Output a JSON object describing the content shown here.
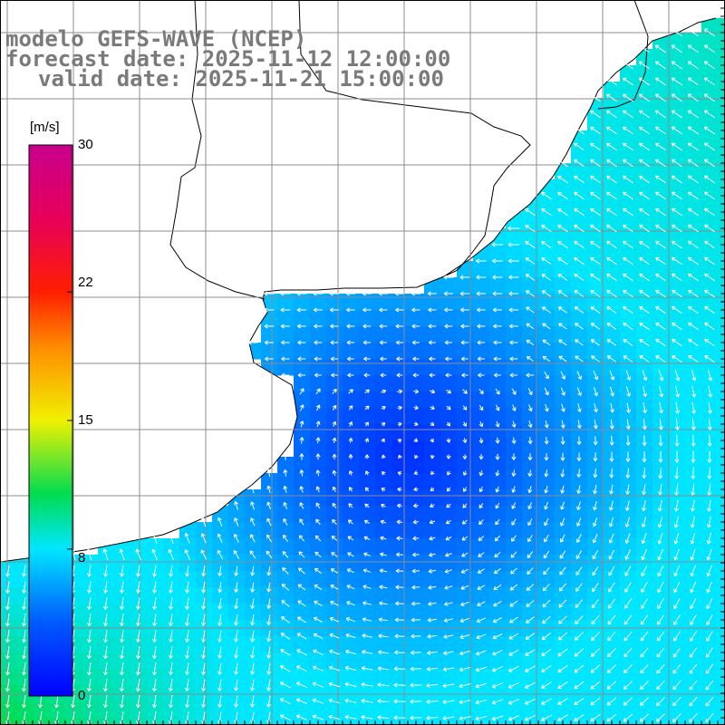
{
  "title": {
    "line1": "modelo GEFS-WAVE (NCEP)",
    "line2": "forecast date: 2025-11-12 12:00:00",
    "line3": "valid date: 2025-11-21 15:00:00"
  },
  "colorbar": {
    "unit": "[m/s]",
    "min": 0,
    "max": 30,
    "ticks": [
      "30",
      "22",
      "15",
      "8",
      "0"
    ],
    "tick_values": [
      30,
      22,
      15,
      8,
      0
    ]
  },
  "colors": {
    "land": "#ffffff",
    "grid": "#8c8c8c",
    "arrow": "#ffffff",
    "title": "#7a7a7a",
    "coast": "#000000"
  },
  "map": {
    "field": "surface wind speed",
    "arrow_glyph": "wind-direction-arrow"
  }
}
